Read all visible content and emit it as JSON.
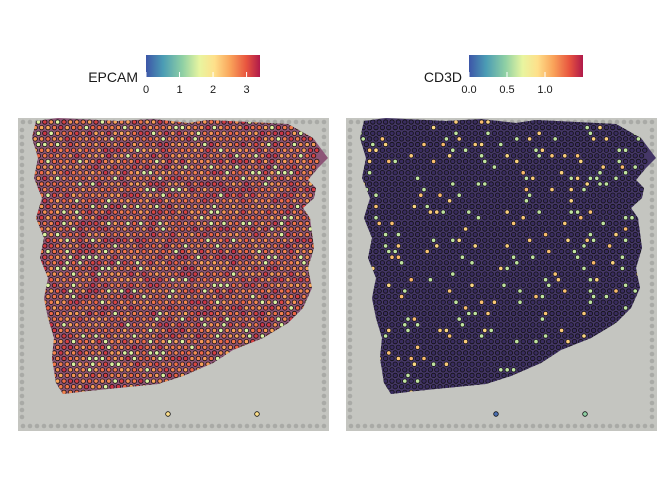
{
  "chart_data": [
    {
      "type": "spatial-heatmap",
      "gene": "EPCAM",
      "legend": {
        "title": "EPCAM",
        "ticks": [
          0,
          1,
          2,
          3
        ],
        "tick_labels": [
          "0",
          "1",
          "2",
          "3"
        ],
        "range": [
          0,
          3.4
        ],
        "colormap": "Spectral (reversed)"
      },
      "tissue_color": "#8a4f73",
      "dominant_value": 2.6,
      "high_spot_value": 3.2
    },
    {
      "type": "spatial-heatmap",
      "gene": "CD3D",
      "legend": {
        "title": "CD3D",
        "ticks": [
          0.0,
          0.5,
          1.0
        ],
        "tick_labels": [
          "0.0",
          "0.5",
          "1.0"
        ],
        "range": [
          0.0,
          1.5
        ],
        "colormap": "Spectral (reversed)"
      },
      "tissue_color": "#3e2f62",
      "dominant_value": 0.02,
      "high_spot_value": 1.0
    }
  ],
  "colors": {
    "background_slide": "#c4c5c0",
    "fiducial_dot": "#a9aaa6",
    "spot_outline": "#111111",
    "gradient": [
      "#3d56a8",
      "#4b9cb4",
      "#8fd0a4",
      "#e8f5a0",
      "#fee08b",
      "#f9a35a",
      "#e8553f",
      "#b01a4a"
    ]
  }
}
